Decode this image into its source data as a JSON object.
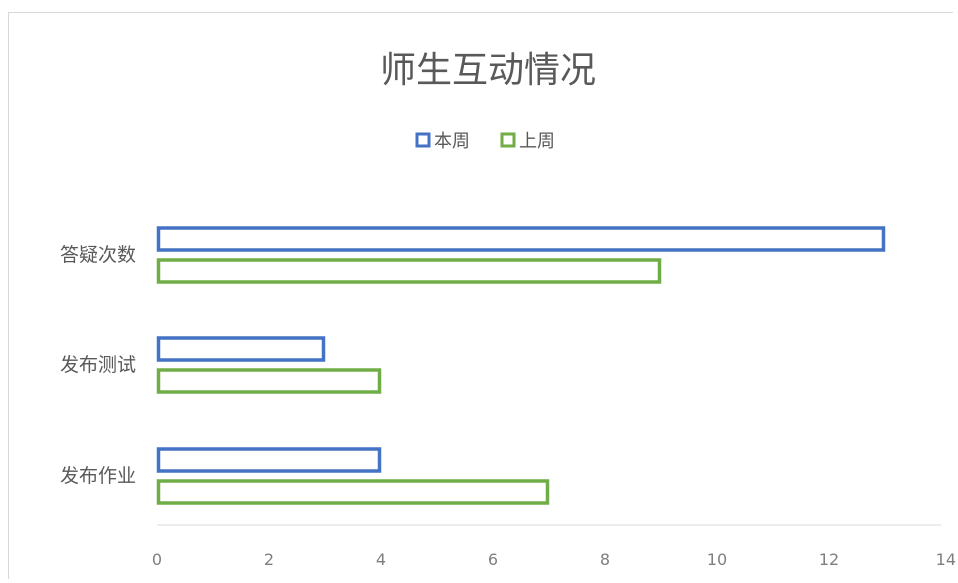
{
  "chart_data": {
    "type": "bar",
    "orientation": "horizontal",
    "title": "师生互动情况",
    "categories": [
      "答疑次数",
      "发布测试",
      "发布作业"
    ],
    "series": [
      {
        "name": "本周",
        "values": [
          13,
          3,
          4
        ],
        "color": "#4472C4"
      },
      {
        "name": "上周",
        "values": [
          9,
          4,
          7
        ],
        "color": "#70AD47"
      }
    ],
    "xlim": [
      0,
      14
    ],
    "x_ticks": [
      "0",
      "2",
      "4",
      "6",
      "8",
      "10",
      "12",
      "14"
    ],
    "xlabel": "",
    "ylabel": "",
    "legend_position": "top",
    "grid": false,
    "bar_style": "outline"
  }
}
